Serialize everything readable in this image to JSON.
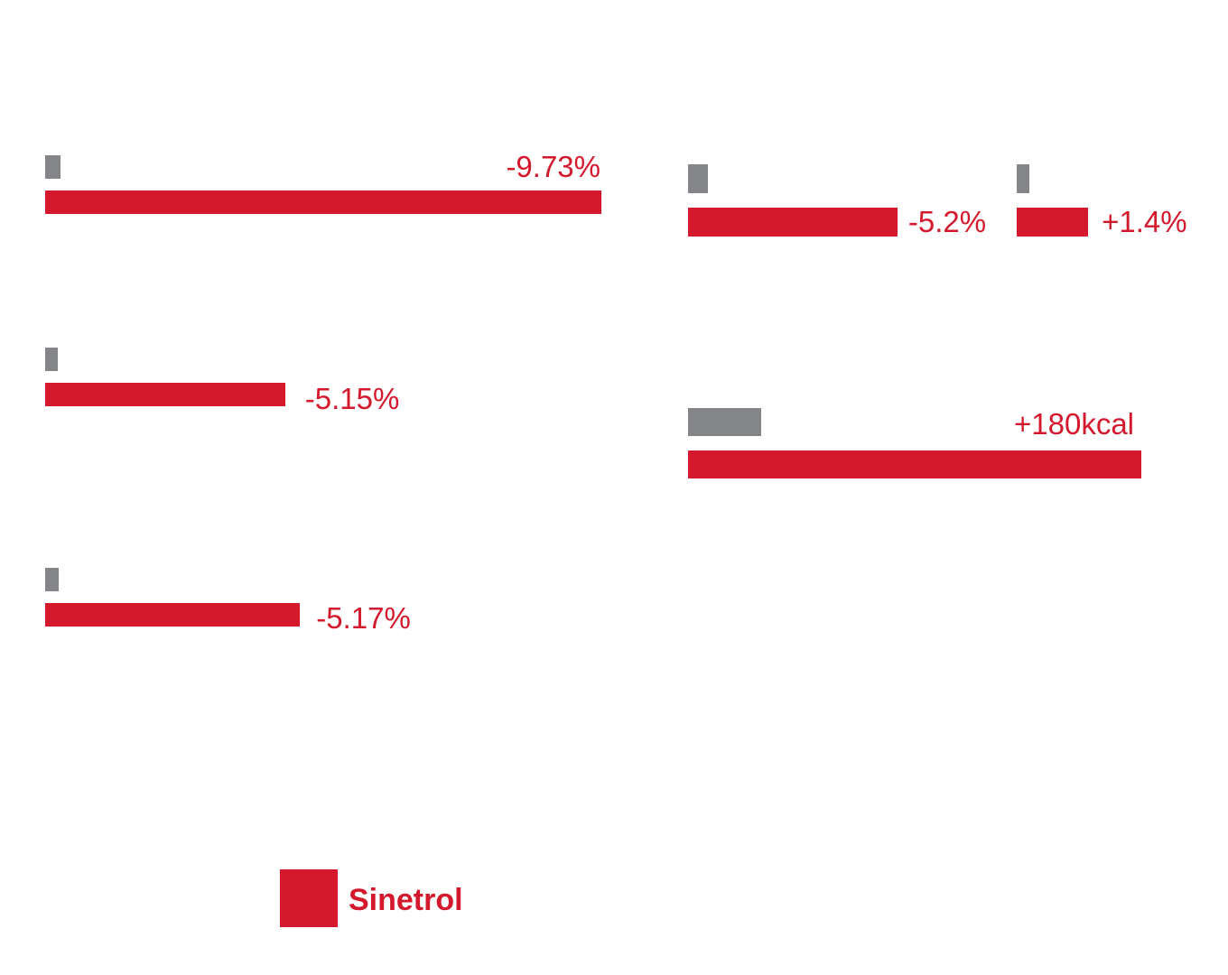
{
  "colors": {
    "placebo": "#848589",
    "sinetrol": "#d4192d"
  },
  "legend": {
    "sinetrol": "Sinetrol"
  },
  "chart_data": [
    {
      "type": "bar",
      "orientation": "horizontal",
      "series": [
        {
          "name": "",
          "values": [
            0.27
          ]
        },
        {
          "name": "Sinetrol",
          "values": [
            -9.73
          ]
        }
      ],
      "value_labels": [
        "-9.73%"
      ],
      "unit": "%"
    },
    {
      "type": "bar",
      "orientation": "horizontal",
      "series": [
        {
          "name": "",
          "values": [
            0.27
          ]
        },
        {
          "name": "Sinetrol",
          "values": [
            -5.15
          ]
        }
      ],
      "value_labels": [
        "-5.15%"
      ],
      "unit": "%"
    },
    {
      "type": "bar",
      "orientation": "horizontal",
      "series": [
        {
          "name": "",
          "values": [
            0.27
          ]
        },
        {
          "name": "Sinetrol",
          "values": [
            -5.17
          ]
        }
      ],
      "value_labels": [
        "-5.17%"
      ],
      "unit": "%"
    },
    {
      "type": "bar",
      "orientation": "horizontal",
      "series": [
        {
          "name": "",
          "values": [
            0.5
          ]
        },
        {
          "name": "Sinetrol",
          "values": [
            -5.2
          ]
        }
      ],
      "value_labels": [
        "-5.2%"
      ],
      "unit": "%"
    },
    {
      "type": "bar",
      "orientation": "horizontal",
      "series": [
        {
          "name": "",
          "values": [
            0.25
          ]
        },
        {
          "name": "Sinetrol",
          "values": [
            1.4
          ]
        }
      ],
      "value_labels": [
        "+1.4%"
      ],
      "unit": "%"
    },
    {
      "type": "bar",
      "orientation": "horizontal",
      "series": [
        {
          "name": "",
          "values": [
            29
          ]
        },
        {
          "name": "Sinetrol",
          "values": [
            180
          ]
        }
      ],
      "value_labels": [
        "+180kcal"
      ],
      "unit": "kcal"
    }
  ]
}
